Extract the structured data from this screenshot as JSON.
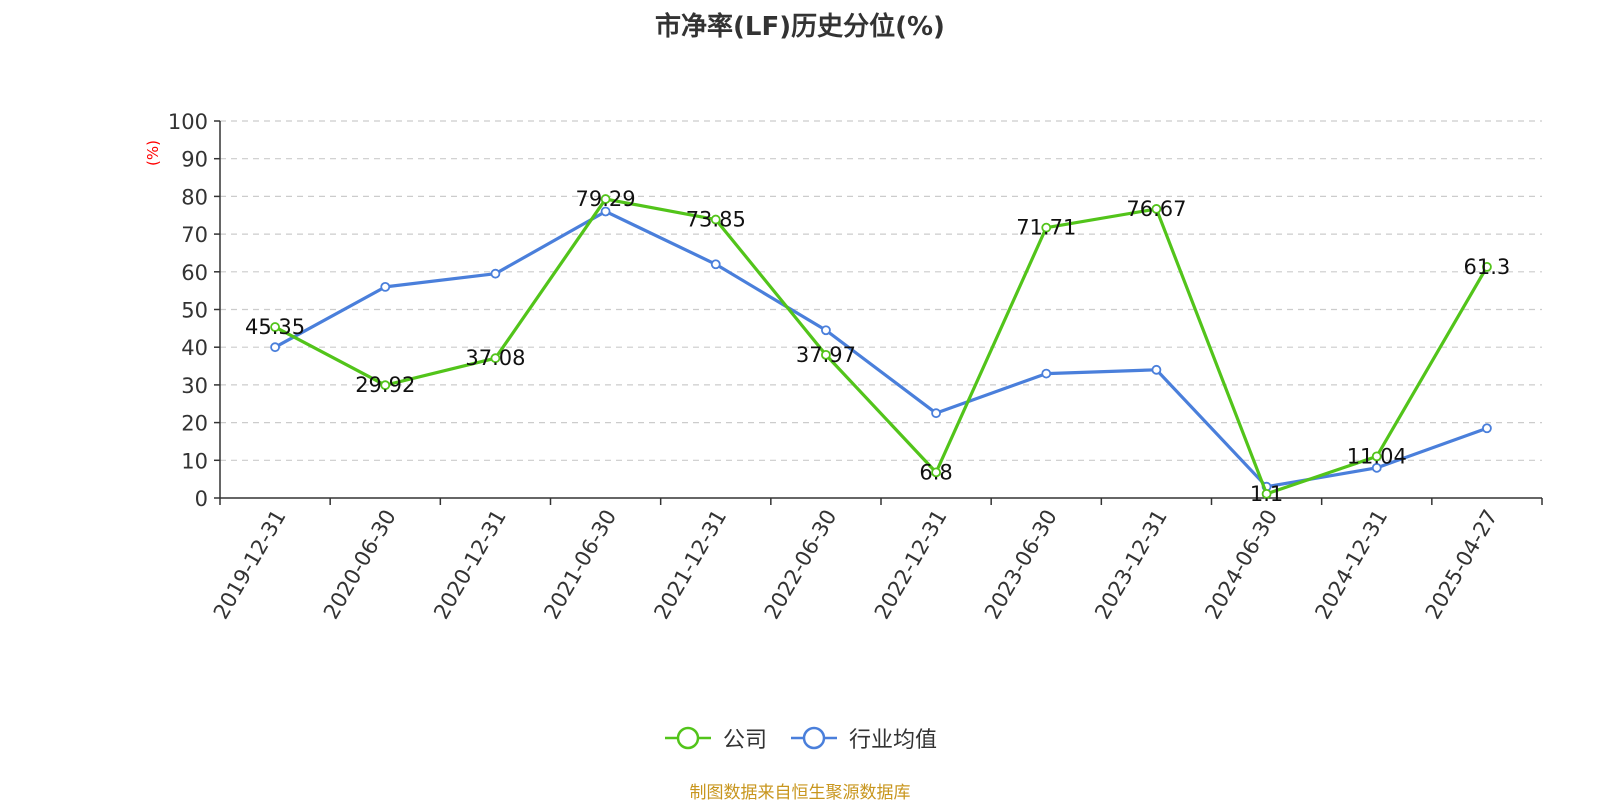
{
  "chart_data": {
    "type": "line",
    "title": "市净率(LF)历史分位(%)",
    "ylabel": "(%)",
    "xlabel": "",
    "ylim": [
      0,
      100
    ],
    "yticks": [
      0,
      10,
      20,
      30,
      40,
      50,
      60,
      70,
      80,
      90,
      100
    ],
    "grid": true,
    "legend_position": "bottom",
    "categories": [
      "2019-12-31",
      "2020-06-30",
      "2020-12-31",
      "2021-06-30",
      "2021-12-31",
      "2022-06-30",
      "2022-12-31",
      "2023-06-30",
      "2023-12-31",
      "2024-06-30",
      "2024-12-31",
      "2025-04-27"
    ],
    "series": [
      {
        "name": "公司",
        "color": "#52c41a",
        "values": [
          45.35,
          29.92,
          37.08,
          79.29,
          73.85,
          37.97,
          6.8,
          71.71,
          76.67,
          1.1,
          11.04,
          61.3
        ],
        "labels": [
          "45.35",
          "29.92",
          "37.08",
          "79.29",
          "73.85",
          "37.97",
          "6.8",
          "71.71",
          "76.67",
          "1.1",
          "11.04",
          "61.3"
        ]
      },
      {
        "name": "行业均值",
        "color": "#4a7fdb",
        "values": [
          40,
          56,
          59.5,
          76,
          62,
          44.5,
          22.5,
          33,
          34,
          3,
          8,
          18.5
        ]
      }
    ]
  },
  "source_note": "制图数据来自恒生聚源数据库"
}
